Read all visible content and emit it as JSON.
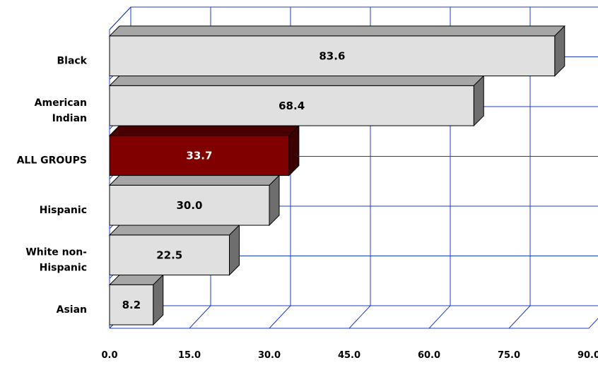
{
  "chart_data": {
    "type": "bar",
    "orientation": "horizontal",
    "categories": [
      "Black",
      "American Indian",
      "ALL GROUPS",
      "Hispanic",
      "White non-Hispanic",
      "Asian"
    ],
    "category_lines": [
      [
        "Black"
      ],
      [
        "American",
        "Indian"
      ],
      [
        "ALL GROUPS"
      ],
      [
        "Hispanic"
      ],
      [
        "White non-",
        "Hispanic"
      ],
      [
        "Asian"
      ]
    ],
    "values": [
      83.6,
      68.4,
      33.7,
      30.0,
      22.5,
      8.2
    ],
    "data_labels": [
      "83.6",
      "68.4",
      "33.7",
      "30.0",
      "22.5",
      "8.2"
    ],
    "highlight_index": 2,
    "xlim": [
      0,
      90
    ],
    "x_ticks": [
      0,
      15,
      30,
      45,
      60,
      75,
      90
    ],
    "x_tick_labels": [
      "0.0",
      "15.0",
      "30.0",
      "45.0",
      "60.0",
      "75.0",
      "90.0"
    ],
    "grid": true,
    "three_d": true,
    "title": "",
    "xlabel": "",
    "ylabel": ""
  },
  "colors": {
    "bar_face": "#e0e0e0",
    "bar_top": "#a6a6a6",
    "bar_side": "#6e6e6e",
    "highlight_face": "#800000",
    "highlight_top": "#4a0000",
    "highlight_side": "#3d0000",
    "grid": "#1c3cc4",
    "label_dark": "#000000",
    "label_light": "#ffffff"
  }
}
